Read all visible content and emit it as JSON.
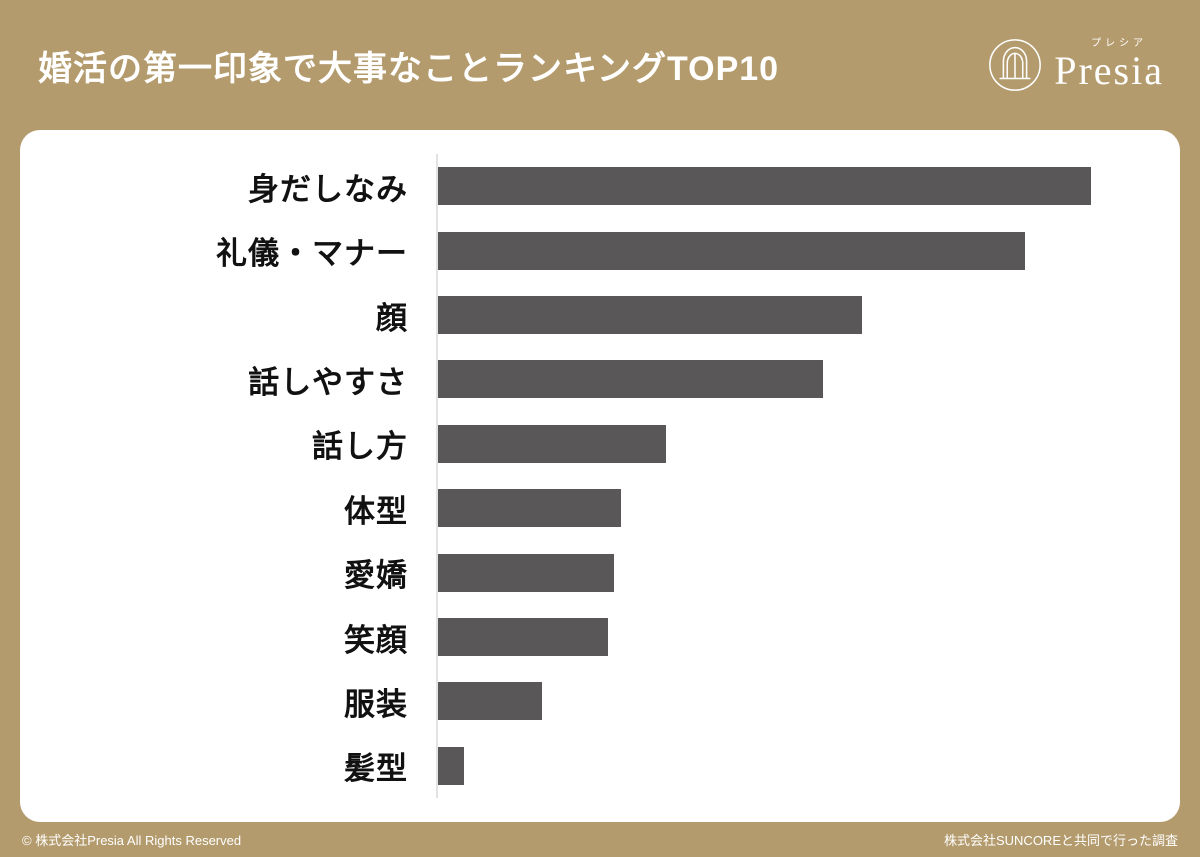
{
  "header": {
    "title": "婚活の第一印象で大事なことランキングTOP10",
    "logo": {
      "kana": "プレシア",
      "name": "Presia"
    }
  },
  "chart_data": {
    "type": "bar",
    "orientation": "horizontal",
    "title": "婚活の第一印象で大事なことランキングTOP10",
    "categories": [
      "身だしなみ",
      "礼儀・マナー",
      "顔",
      "話しやすさ",
      "話し方",
      "体型",
      "愛嬌",
      "笑顔",
      "服装",
      "髪型"
    ],
    "values": [
      100,
      90,
      65,
      59,
      35,
      28,
      27,
      26,
      16,
      4
    ],
    "xlabel": "",
    "ylabel": "",
    "grid": false,
    "legend": false,
    "bar_color": "#595757",
    "note": "values estimated from bar lengths; no numeric data labels shown"
  },
  "colors": {
    "background": "#B49B6D",
    "card": "#FFFFFF",
    "bar": "#595757",
    "title_text": "#FFFFFF"
  },
  "footer": {
    "left": "© 株式会社Presia All Rights Reserved",
    "right": "株式会社SUNCOREと共同で行った調査"
  }
}
